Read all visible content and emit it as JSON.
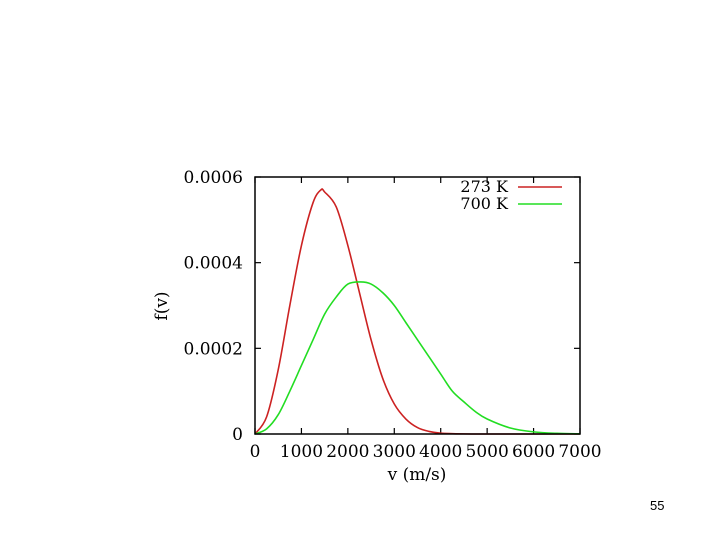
{
  "slide": {
    "page_number": "55"
  },
  "chart_data": {
    "type": "line",
    "title": "",
    "xlabel": "v (m/s)",
    "ylabel": "f(v)",
    "xlim": [
      0,
      7000
    ],
    "ylim": [
      0,
      0.0006
    ],
    "x_ticks": [
      0,
      1000,
      2000,
      3000,
      4000,
      5000,
      6000,
      7000
    ],
    "x_tick_labels": [
      "0",
      "1000",
      "2000",
      "3000",
      "4000",
      "5000",
      "6000",
      "7000"
    ],
    "y_ticks": [
      0,
      0.0002,
      0.0004,
      0.0006
    ],
    "y_tick_labels": [
      "0",
      "0.0002",
      "0.0004",
      "0.0006"
    ],
    "grid": false,
    "legend_position": "top-right",
    "series": [
      {
        "name": "273 K",
        "color": "#cc2222",
        "x": [
          0,
          250,
          500,
          750,
          1000,
          1250,
          1420,
          1500,
          1750,
          2000,
          2250,
          2500,
          2750,
          3000,
          3250,
          3500,
          3750,
          4000,
          4500,
          5000,
          5500,
          6000,
          7000
        ],
        "y": [
          0,
          4e-05,
          0.00015,
          0.0003,
          0.00044,
          0.00054,
          0.00057,
          0.000565,
          0.00053,
          0.00044,
          0.00033,
          0.00022,
          0.00013,
          7e-05,
          3.5e-05,
          1.5e-05,
          6e-06,
          2e-06,
          3e-07,
          0,
          0,
          0,
          0
        ]
      },
      {
        "name": "700 K",
        "color": "#22dd22",
        "x": [
          0,
          250,
          500,
          750,
          1000,
          1250,
          1500,
          1750,
          2000,
          2280,
          2500,
          2750,
          3000,
          3250,
          3500,
          3750,
          4000,
          4250,
          4500,
          4750,
          5000,
          5500,
          6000,
          6500,
          7000
        ],
        "y": [
          0,
          1.2e-05,
          4.5e-05,
          0.0001,
          0.00016,
          0.00022,
          0.00028,
          0.00032,
          0.00035,
          0.000355,
          0.00035,
          0.00033,
          0.0003,
          0.00026,
          0.00022,
          0.00018,
          0.00014,
          0.0001,
          7.5e-05,
          5.2e-05,
          3.5e-05,
          1.4e-05,
          5e-06,
          1.5e-06,
          4e-07
        ]
      }
    ]
  }
}
